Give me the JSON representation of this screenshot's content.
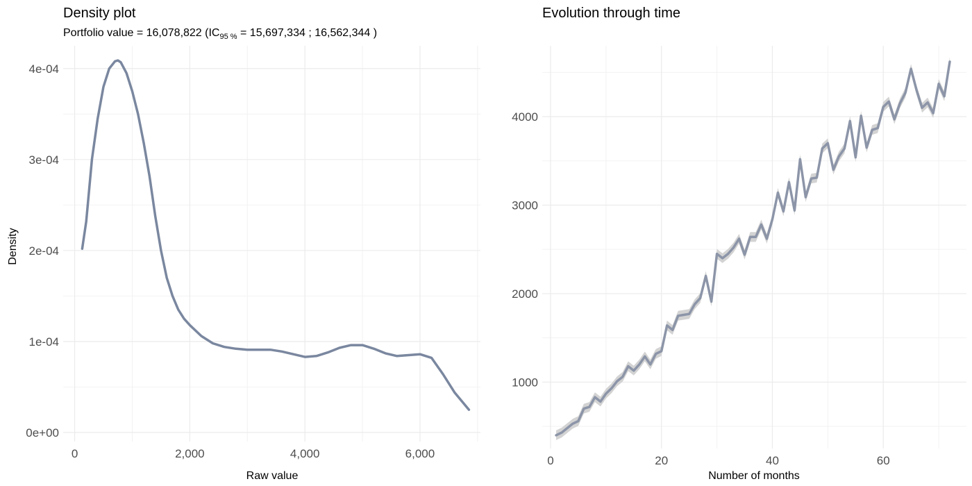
{
  "chart_data": [
    {
      "type": "line",
      "title": "Density plot",
      "subtitle": {
        "prefix": "Portfolio value = 16,078,822 (IC",
        "sub": "95 %",
        "suffix": " =  15,697,334 ; 16,562,344 )"
      },
      "xlabel": "Raw value",
      "ylabel": "Density",
      "xlim": [
        -200,
        7050
      ],
      "ylim": [
        -1e-05,
        0.000425
      ],
      "x_ticks": [
        0,
        2000,
        4000,
        6000
      ],
      "x_tick_labels": [
        "0",
        "2,000",
        "4,000",
        "6,000"
      ],
      "y_ticks": [
        0,
        0.0001,
        0.0002,
        0.0003,
        0.0004
      ],
      "y_tick_labels": [
        "0e+00",
        "1e-04",
        "2e-04",
        "3e-04",
        "4e-04"
      ],
      "grid": true,
      "line_color": "#7a879f",
      "series": [
        {
          "x": [
            130,
            200,
            300,
            400,
            500,
            600,
            700,
            750,
            800,
            900,
            1000,
            1100,
            1200,
            1300,
            1400,
            1500,
            1600,
            1700,
            1800,
            1900,
            2000,
            2200,
            2400,
            2600,
            2800,
            3000,
            3200,
            3400,
            3600,
            3800,
            4000,
            4200,
            4400,
            4600,
            4800,
            5000,
            5200,
            5400,
            5600,
            5800,
            6000,
            6200,
            6400,
            6600,
            6850
          ],
          "y": [
            0.000202,
            0.000232,
            0.0003,
            0.000345,
            0.00038,
            0.0004,
            0.000408,
            0.000409,
            0.000407,
            0.000395,
            0.000375,
            0.00035,
            0.000318,
            0.000282,
            0.000238,
            0.0002,
            0.00017,
            0.00015,
            0.000135,
            0.000125,
            0.000118,
            0.000106,
            9.8e-05,
            9.4e-05,
            9.2e-05,
            9.1e-05,
            9.1e-05,
            9.1e-05,
            8.9e-05,
            8.6e-05,
            8.3e-05,
            8.4e-05,
            8.8e-05,
            9.3e-05,
            9.6e-05,
            9.6e-05,
            9.2e-05,
            8.7e-05,
            8.4e-05,
            8.5e-05,
            8.6e-05,
            8.2e-05,
            6.4e-05,
            4.4e-05,
            2.5e-05
          ]
        }
      ]
    },
    {
      "type": "line",
      "title": "Evolution through time",
      "xlabel": "Number of months",
      "ylabel": "",
      "xlim": [
        -1.5,
        75
      ],
      "ylim": [
        250,
        4800
      ],
      "x_ticks": [
        0,
        20,
        40,
        60
      ],
      "x_tick_labels": [
        "0",
        "20",
        "40",
        "60"
      ],
      "y_ticks": [
        1000,
        2000,
        3000,
        4000
      ],
      "y_tick_labels": [
        "1000",
        "2000",
        "3000",
        "4000"
      ],
      "grid": true,
      "line_color": "#8c95a8",
      "band_color": "#d3d3d3",
      "series": [
        {
          "x": [
            1,
            2,
            3,
            4,
            5,
            6,
            7,
            8,
            9,
            10,
            11,
            12,
            13,
            14,
            15,
            16,
            17,
            18,
            19,
            20,
            21,
            22,
            23,
            24,
            25,
            26,
            27,
            28,
            29,
            30,
            31,
            32,
            33,
            34,
            35,
            36,
            37,
            38,
            39,
            40,
            41,
            42,
            43,
            44,
            45,
            46,
            47,
            48,
            49,
            50,
            51,
            52,
            53,
            54,
            55,
            56,
            57,
            58,
            59,
            60,
            61,
            62,
            63,
            64,
            65,
            66,
            67,
            68,
            69,
            70,
            71,
            72
          ],
          "y": [
            400,
            430,
            480,
            530,
            560,
            700,
            720,
            830,
            780,
            870,
            930,
            1010,
            1060,
            1180,
            1130,
            1200,
            1290,
            1200,
            1320,
            1350,
            1640,
            1590,
            1750,
            1760,
            1770,
            1880,
            1950,
            2200,
            1910,
            2450,
            2400,
            2450,
            2520,
            2620,
            2440,
            2640,
            2640,
            2780,
            2620,
            2840,
            3140,
            2930,
            3260,
            2940,
            3520,
            3090,
            3300,
            3310,
            3640,
            3700,
            3400,
            3550,
            3640,
            3950,
            3540,
            4010,
            3650,
            3850,
            3870,
            4110,
            4170,
            3970,
            4150,
            4270,
            4540,
            4300,
            4100,
            4160,
            4040,
            4370,
            4230,
            4620
          ],
          "band": 55
        }
      ]
    }
  ]
}
